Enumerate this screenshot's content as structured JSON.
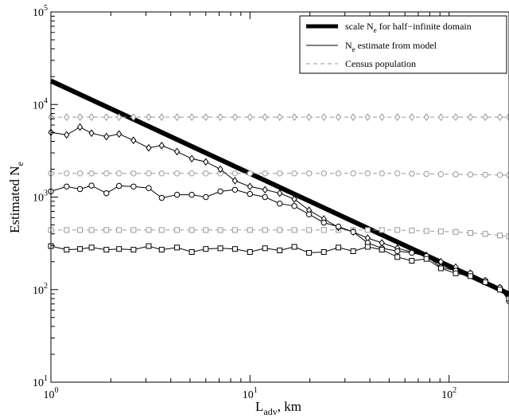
{
  "chart_data": {
    "type": "line",
    "xlabel": "L_adv, km",
    "ylabel": "Estimated N_e",
    "x_scale": "log",
    "y_scale": "log",
    "xlim": [
      1,
      200
    ],
    "ylim": [
      10,
      100000
    ],
    "grid": false,
    "legend_placement": "top-right",
    "x_ticks": [
      {
        "value": 1,
        "base": "10",
        "exp": "0"
      },
      {
        "value": 10,
        "base": "10",
        "exp": "1"
      },
      {
        "value": 100,
        "base": "10",
        "exp": "2"
      }
    ],
    "y_ticks": [
      {
        "value": 10,
        "base": "10",
        "exp": "1"
      },
      {
        "value": 100,
        "base": "10",
        "exp": "2"
      },
      {
        "value": 1000,
        "base": "10",
        "exp": "3"
      },
      {
        "value": 10000,
        "base": "10",
        "exp": "4"
      },
      {
        "value": 100000,
        "base": "10",
        "exp": "5"
      }
    ],
    "legend": [
      {
        "pre": "scale N",
        "sub": "e",
        "post": " for half−infinite domain",
        "style": "thick",
        "color": "#000000"
      },
      {
        "pre": "N",
        "sub": "e",
        "post": " estimate from model",
        "style": "thin",
        "color": "#000000"
      },
      {
        "pre": "Census population",
        "sub": "",
        "post": "",
        "style": "dashed",
        "color": "#999999"
      }
    ],
    "series": [
      {
        "role": "scale",
        "color": "#000000",
        "x": [
          1,
          200
        ],
        "y": [
          18000,
          90
        ]
      },
      {
        "role": "census",
        "marker": "diamond",
        "color": "#999999",
        "x": [
          1,
          1.2,
          1.4,
          1.6,
          1.9,
          2.2,
          2.6,
          3.1,
          3.6,
          4.3,
          5.1,
          6.0,
          7.1,
          8.4,
          10,
          11.9,
          14.1,
          16.7,
          19.8,
          23.5,
          27.8,
          33,
          39,
          46,
          55,
          65,
          77,
          91,
          108,
          128,
          152,
          180,
          200
        ],
        "y": [
          7300,
          7300,
          7300,
          7300,
          7300,
          7300,
          7300,
          7300,
          7300,
          7300,
          7300,
          7300,
          7300,
          7300,
          7300,
          7300,
          7300,
          7300,
          7300,
          7300,
          7300,
          7300,
          7300,
          7300,
          7300,
          7300,
          7300,
          7300,
          7300,
          7300,
          7300,
          7300,
          7300
        ]
      },
      {
        "role": "census",
        "marker": "circle",
        "color": "#999999",
        "x": [
          1,
          1.2,
          1.4,
          1.6,
          1.9,
          2.2,
          2.6,
          3.1,
          3.6,
          4.3,
          5.1,
          6.0,
          7.1,
          8.4,
          10,
          11.9,
          14.1,
          16.7,
          19.8,
          23.5,
          27.8,
          33,
          39,
          46,
          55,
          65,
          77,
          91,
          108,
          128,
          152,
          180,
          200
        ],
        "y": [
          1800,
          1800,
          1800,
          1800,
          1800,
          1800,
          1800,
          1800,
          1800,
          1800,
          1800,
          1800,
          1800,
          1800,
          1800,
          1800,
          1800,
          1800,
          1800,
          1800,
          1800,
          1800,
          1800,
          1800,
          1800,
          1790,
          1780,
          1770,
          1760,
          1750,
          1740,
          1730,
          1720
        ]
      },
      {
        "role": "census",
        "marker": "square",
        "color": "#999999",
        "x": [
          1,
          1.2,
          1.4,
          1.6,
          1.9,
          2.2,
          2.6,
          3.1,
          3.6,
          4.3,
          5.1,
          6.0,
          7.1,
          8.4,
          10,
          11.9,
          14.1,
          16.7,
          19.8,
          23.5,
          27.8,
          33,
          39,
          46,
          55,
          65,
          77,
          91,
          108,
          128,
          152,
          180,
          200
        ],
        "y": [
          440,
          440,
          440,
          440,
          440,
          440,
          440,
          440,
          440,
          440,
          440,
          440,
          440,
          440,
          440,
          440,
          440,
          440,
          440,
          440,
          440,
          440,
          440,
          440,
          440,
          435,
          430,
          425,
          420,
          410,
          400,
          385,
          375
        ]
      },
      {
        "role": "model",
        "marker": "diamond",
        "color": "#000000",
        "x": [
          1,
          1.2,
          1.4,
          1.6,
          1.9,
          2.2,
          2.6,
          3.1,
          3.6,
          4.3,
          5.1,
          6.0,
          7.1,
          8.4,
          10,
          11.9,
          14.1,
          16.7,
          19.8,
          23.5,
          27.8,
          33,
          39,
          46,
          55,
          65,
          77,
          91,
          108,
          128,
          152,
          180,
          200
        ],
        "y": [
          5000,
          4700,
          5700,
          4900,
          4500,
          4800,
          4100,
          3400,
          3600,
          3100,
          2600,
          2400,
          2000,
          1500,
          1300,
          1200,
          1100,
          950,
          720,
          580,
          470,
          420,
          360,
          320,
          280,
          255,
          235,
          200,
          175,
          150,
          125,
          105,
          80
        ]
      },
      {
        "role": "model",
        "marker": "circle",
        "color": "#000000",
        "x": [
          1,
          1.2,
          1.4,
          1.6,
          1.9,
          2.2,
          2.6,
          3.1,
          3.6,
          4.3,
          5.1,
          6.0,
          7.1,
          8.4,
          10,
          11.9,
          14.1,
          16.7,
          19.8,
          23.5,
          27.8,
          33,
          39,
          46,
          55,
          65,
          77,
          91,
          108,
          128,
          152,
          180,
          200
        ],
        "y": [
          1150,
          1300,
          1220,
          1330,
          1100,
          1320,
          1300,
          1250,
          980,
          1060,
          1060,
          1000,
          1150,
          1200,
          1080,
          1000,
          850,
          800,
          650,
          530,
          480,
          420,
          320,
          280,
          260,
          250,
          230,
          175,
          160,
          150,
          125,
          105,
          75
        ]
      },
      {
        "role": "model",
        "marker": "square",
        "color": "#000000",
        "x": [
          1,
          1.2,
          1.4,
          1.6,
          1.9,
          2.2,
          2.6,
          3.1,
          3.6,
          4.3,
          5.1,
          6.0,
          7.1,
          8.4,
          10,
          11.9,
          14.1,
          16.7,
          19.8,
          23.5,
          27.8,
          33,
          39,
          46,
          55,
          65,
          77,
          91,
          108,
          128,
          152,
          180,
          200
        ],
        "y": [
          295,
          270,
          275,
          285,
          270,
          275,
          270,
          295,
          270,
          285,
          255,
          275,
          280,
          275,
          255,
          280,
          265,
          290,
          250,
          255,
          285,
          260,
          290,
          270,
          225,
          205,
          215,
          170,
          150,
          140,
          120,
          100,
          80
        ]
      }
    ]
  }
}
